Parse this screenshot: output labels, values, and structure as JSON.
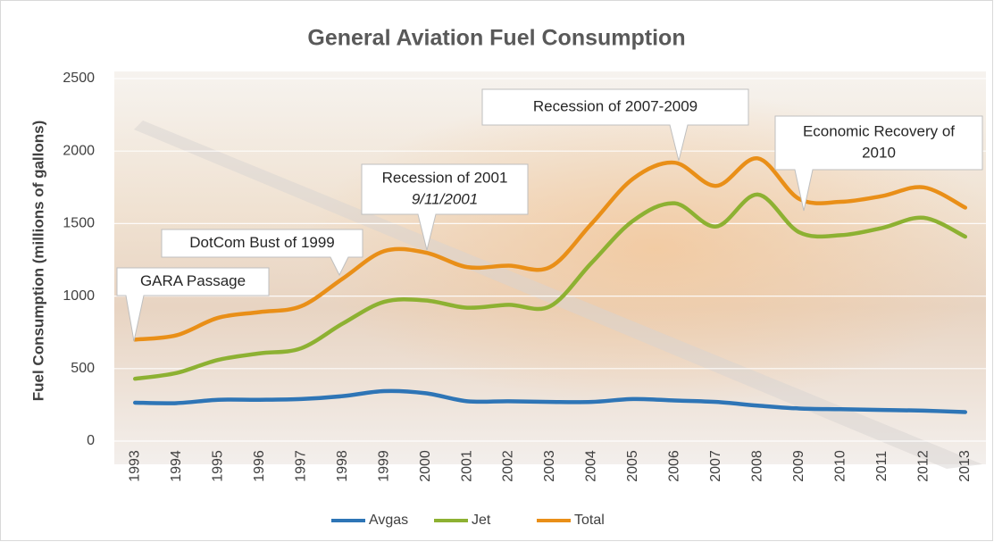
{
  "chart_data": {
    "type": "line",
    "title": "General Aviation Fuel Consumption",
    "y_label": "Fuel Consumption (millions of gallons)",
    "categories": [
      "1993",
      "1994",
      "1995",
      "1996",
      "1997",
      "1998",
      "1999",
      "2000",
      "2001",
      "2002",
      "2003",
      "2004",
      "2005",
      "2006",
      "2007",
      "2008",
      "2009",
      "2010",
      "2011",
      "2012",
      "2013"
    ],
    "series": [
      {
        "name": "Avgas",
        "color": "#2e75b6",
        "values": [
          265,
          262,
          285,
          285,
          290,
          310,
          345,
          330,
          275,
          275,
          270,
          270,
          290,
          280,
          270,
          245,
          225,
          220,
          215,
          210,
          200
        ]
      },
      {
        "name": "Jet",
        "color": "#8db132",
        "values": [
          430,
          470,
          560,
          605,
          640,
          810,
          960,
          970,
          920,
          940,
          930,
          1230,
          1520,
          1640,
          1480,
          1700,
          1440,
          1420,
          1470,
          1540,
          1410
        ]
      },
      {
        "name": "Total",
        "color": "#e98f18",
        "values": [
          700,
          730,
          850,
          890,
          930,
          1120,
          1310,
          1300,
          1200,
          1210,
          1200,
          1500,
          1810,
          1920,
          1760,
          1950,
          1670,
          1650,
          1690,
          1750,
          1610
        ]
      }
    ],
    "ylim": [
      0,
      2500
    ],
    "yticks": [
      0,
      500,
      1000,
      1500,
      2000,
      2500
    ],
    "grid": true,
    "legend": "bottom",
    "annotations": [
      {
        "lines": [
          "GARA Passage"
        ]
      },
      {
        "lines": [
          "DotCom Bust of 1999"
        ]
      },
      {
        "lines": [
          "Recession of 2001",
          "9/11/2001"
        ]
      },
      {
        "lines": [
          "Recession of 2007-2009"
        ]
      },
      {
        "lines": [
          "Economic Recovery of",
          "2010"
        ]
      }
    ]
  }
}
